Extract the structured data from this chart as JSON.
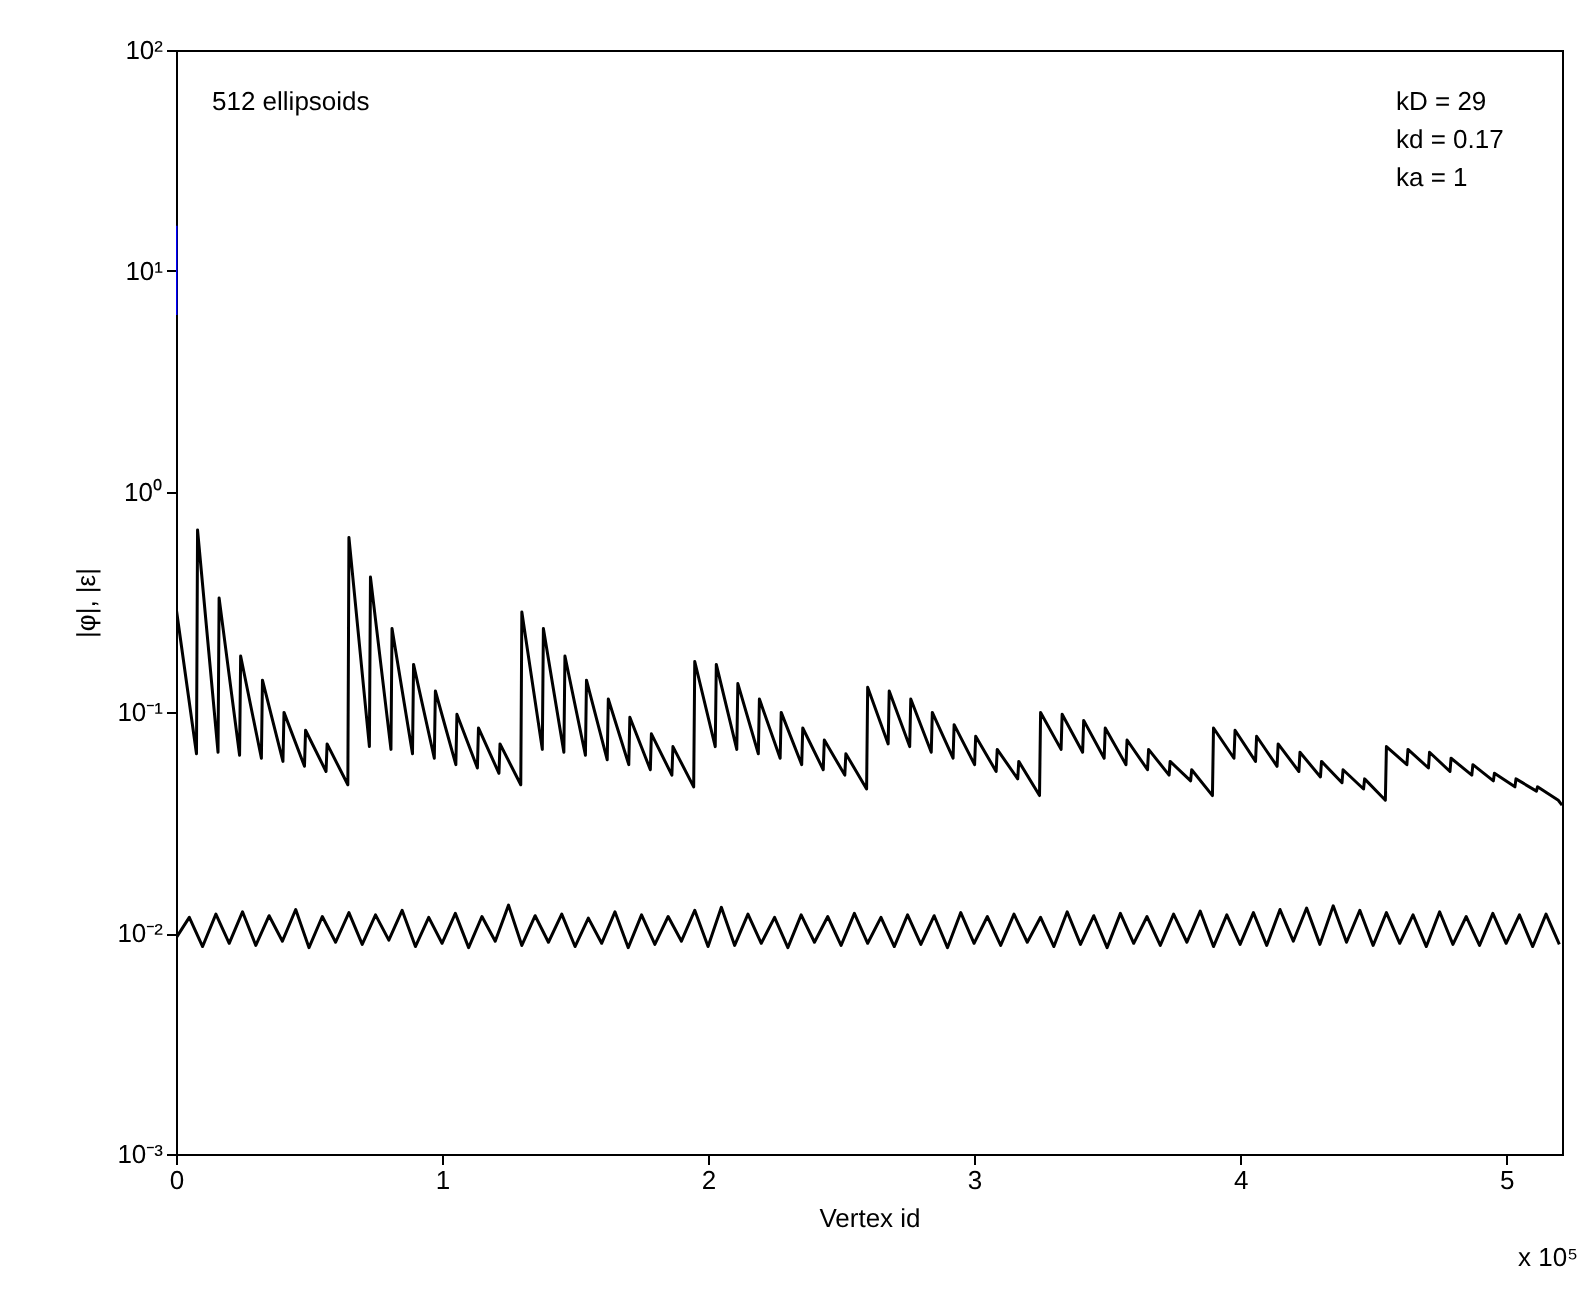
{
  "chart_data": {
    "type": "line",
    "xlabel": "Vertex id",
    "ylabel": "|φ|, |ε|",
    "annotations": [
      "512 ellipsoids",
      "kD = 29",
      "kd = 0.17",
      "ka = 1",
      "x 10⁵"
    ],
    "log": true,
    "grid": false,
    "xlim": [
      0,
      5.21
    ],
    "xticks": [
      0,
      1,
      2,
      3,
      4,
      5
    ],
    "ylim": [
      0.001,
      100
    ],
    "yticks": [
      {
        "value": 0.001,
        "label": "10⁻³"
      },
      {
        "value": 0.01,
        "label": "10⁻²"
      },
      {
        "value": 0.1,
        "label": "10⁻¹"
      },
      {
        "value": 1,
        "label": "10⁰"
      },
      {
        "value": 10,
        "label": "10¹"
      },
      {
        "value": 100,
        "label": "10²"
      }
    ],
    "series": [
      {
        "color": "#000000",
        "x": [
          0,
          0.077,
          0.081,
          0.158,
          0.162,
          0.239,
          0.243,
          0.321,
          0.325,
          0.402,
          0.406,
          0.483,
          0.487,
          0.564,
          0.568,
          0.646,
          0.65,
          0.727,
          0.731,
          0.808,
          0.812,
          0.889,
          0.893,
          0.971,
          0.975,
          1.052,
          1.056,
          1.133,
          1.137,
          1.214,
          1.218,
          1.296,
          1.3,
          1.377,
          1.381,
          1.458,
          1.462,
          1.539,
          1.543,
          1.621,
          1.625,
          1.702,
          1.706,
          1.783,
          1.787,
          1.864,
          1.868,
          1.946,
          1.95,
          2.027,
          2.031,
          2.108,
          2.112,
          2.189,
          2.193,
          2.271,
          2.275,
          2.352,
          2.356,
          2.433,
          2.437,
          2.514,
          2.518,
          2.596,
          2.6,
          2.677,
          2.681,
          2.758,
          2.762,
          2.839,
          2.843,
          2.921,
          2.925,
          3.002,
          3.006,
          3.083,
          3.087,
          3.164,
          3.168,
          3.246,
          3.25,
          3.327,
          3.331,
          3.408,
          3.412,
          3.489,
          3.493,
          3.571,
          3.575,
          3.652,
          3.656,
          3.733,
          3.737,
          3.814,
          3.818,
          3.896,
          3.9,
          3.977,
          3.981,
          4.058,
          4.062,
          4.139,
          4.143,
          4.221,
          4.225,
          4.302,
          4.306,
          4.383,
          4.387,
          4.464,
          4.468,
          4.546,
          4.55,
          4.627,
          4.631,
          4.708,
          4.712,
          4.789,
          4.793,
          4.871,
          4.875,
          4.952,
          4.956,
          5.033,
          5.037,
          5.114,
          5.118,
          5.196,
          5.21
        ],
        "values": [
          0.3,
          0.065,
          0.67,
          0.066,
          0.33,
          0.064,
          0.18,
          0.062,
          0.14,
          0.06,
          0.1,
          0.057,
          0.083,
          0.054,
          0.072,
          0.047,
          0.62,
          0.07,
          0.41,
          0.068,
          0.24,
          0.065,
          0.165,
          0.062,
          0.125,
          0.058,
          0.098,
          0.056,
          0.085,
          0.053,
          0.072,
          0.047,
          0.285,
          0.068,
          0.24,
          0.066,
          0.18,
          0.064,
          0.14,
          0.061,
          0.115,
          0.058,
          0.095,
          0.055,
          0.08,
          0.052,
          0.07,
          0.046,
          0.17,
          0.07,
          0.165,
          0.068,
          0.135,
          0.065,
          0.115,
          0.062,
          0.1,
          0.058,
          0.085,
          0.055,
          0.075,
          0.052,
          0.065,
          0.045,
          0.13,
          0.072,
          0.125,
          0.07,
          0.115,
          0.066,
          0.1,
          0.062,
          0.088,
          0.058,
          0.078,
          0.054,
          0.068,
          0.05,
          0.06,
          0.042,
          0.1,
          0.068,
          0.098,
          0.066,
          0.092,
          0.062,
          0.085,
          0.058,
          0.075,
          0.055,
          0.068,
          0.052,
          0.06,
          0.049,
          0.055,
          0.042,
          0.085,
          0.062,
          0.083,
          0.06,
          0.078,
          0.057,
          0.072,
          0.054,
          0.066,
          0.051,
          0.06,
          0.048,
          0.055,
          0.045,
          0.05,
          0.04,
          0.07,
          0.058,
          0.068,
          0.056,
          0.066,
          0.054,
          0.062,
          0.052,
          0.058,
          0.049,
          0.053,
          0.046,
          0.05,
          0.044,
          0.046,
          0.04,
          0.038
        ]
      },
      {
        "color": "#000000",
        "x": [
          0,
          0.05,
          0.1,
          0.15,
          0.2,
          0.25,
          0.3,
          0.35,
          0.4,
          0.45,
          0.5,
          0.55,
          0.6,
          0.65,
          0.7,
          0.75,
          0.8,
          0.85,
          0.9,
          0.95,
          1,
          1.05,
          1.1,
          1.15,
          1.2,
          1.25,
          1.3,
          1.35,
          1.4,
          1.45,
          1.5,
          1.55,
          1.6,
          1.65,
          1.7,
          1.75,
          1.8,
          1.85,
          1.9,
          1.95,
          2,
          2.05,
          2.1,
          2.15,
          2.2,
          2.25,
          2.3,
          2.35,
          2.4,
          2.45,
          2.5,
          2.55,
          2.6,
          2.65,
          2.7,
          2.75,
          2.8,
          2.85,
          2.9,
          2.95,
          3,
          3.05,
          3.1,
          3.15,
          3.2,
          3.25,
          3.3,
          3.35,
          3.4,
          3.45,
          3.5,
          3.55,
          3.6,
          3.65,
          3.7,
          3.75,
          3.8,
          3.85,
          3.9,
          3.95,
          4,
          4.05,
          4.1,
          4.15,
          4.2,
          4.25,
          4.3,
          4.35,
          4.4,
          4.45,
          4.5,
          4.55,
          4.6,
          4.65,
          4.7,
          4.75,
          4.8,
          4.85,
          4.9,
          4.95,
          5,
          5.05,
          5.1,
          5.15,
          5.2
        ],
        "values": [
          0.0095,
          0.0118,
          0.0087,
          0.0122,
          0.009,
          0.0125,
          0.0088,
          0.012,
          0.0092,
          0.0128,
          0.0086,
          0.0119,
          0.0091,
          0.0124,
          0.0089,
          0.0121,
          0.0093,
          0.0127,
          0.0087,
          0.0118,
          0.009,
          0.0123,
          0.0086,
          0.0119,
          0.0092,
          0.0134,
          0.0088,
          0.012,
          0.0091,
          0.0122,
          0.0087,
          0.0117,
          0.009,
          0.0125,
          0.0086,
          0.0121,
          0.0089,
          0.0119,
          0.0092,
          0.0127,
          0.0087,
          0.0131,
          0.0088,
          0.0122,
          0.009,
          0.0118,
          0.0086,
          0.0121,
          0.0091,
          0.0119,
          0.0088,
          0.0123,
          0.009,
          0.0118,
          0.0087,
          0.0121,
          0.0089,
          0.012,
          0.0086,
          0.0124,
          0.009,
          0.0119,
          0.0088,
          0.0122,
          0.0091,
          0.0118,
          0.0087,
          0.0125,
          0.0089,
          0.012,
          0.0086,
          0.0123,
          0.009,
          0.0119,
          0.0088,
          0.0122,
          0.0091,
          0.0126,
          0.0087,
          0.0121,
          0.0089,
          0.0124,
          0.0088,
          0.0128,
          0.0092,
          0.013,
          0.0089,
          0.0133,
          0.0091,
          0.0127,
          0.0088,
          0.0124,
          0.009,
          0.0121,
          0.0087,
          0.0125,
          0.0089,
          0.0119,
          0.0088,
          0.0123,
          0.009,
          0.0121,
          0.0087,
          0.0122,
          0.0089
        ]
      },
      {
        "color": "#0000ff",
        "x": [
          0,
          0
        ],
        "values": [
          16,
          6.3
        ]
      }
    ]
  }
}
